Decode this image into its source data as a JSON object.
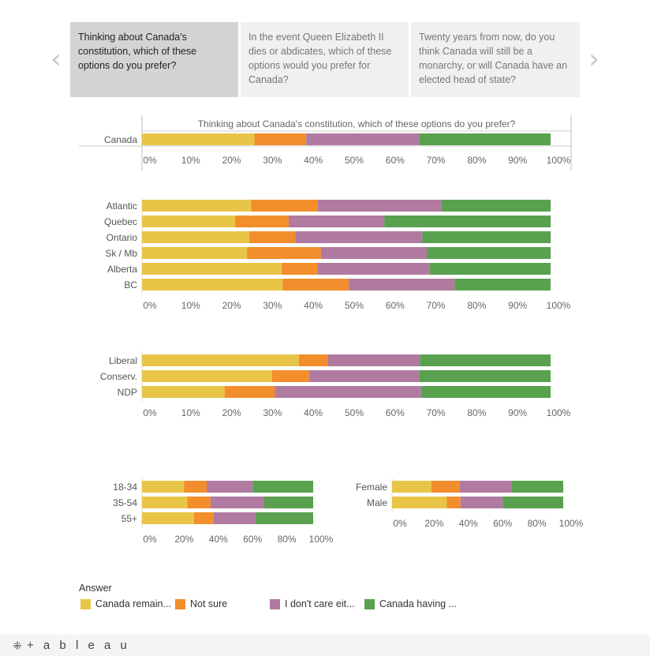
{
  "nav": {
    "prev_icon": "chevron-left-icon",
    "next_icon": "chevron-right-icon",
    "prev_glyph": "‹",
    "next_glyph": "›"
  },
  "tabs": [
    {
      "label": "Thinking about Canada's constitution, which of these options do you prefer?",
      "active": true
    },
    {
      "label": "In the event Queen Elizabeth II dies or abdicates, which of these options would you prefer for Canada?",
      "active": false
    },
    {
      "label": "Twenty years from now, do you think Canada will still be a monarchy, or will Canada have an elected head of state?",
      "active": false
    }
  ],
  "colors": {
    "remain": "#e8c547",
    "not_sure": "#f28e2b",
    "dont_care": "#b07aa1",
    "having": "#59a14f"
  },
  "legend": {
    "title": "Answer",
    "items": [
      {
        "label": "Canada remain...",
        "color": "#e8c547"
      },
      {
        "label": "Not sure",
        "color": "#f28e2b"
      },
      {
        "label": "I don't care eit...",
        "color": "#b07aa1"
      },
      {
        "label": "Canada having ...",
        "color": "#59a14f"
      }
    ]
  },
  "footer": {
    "brand": "+ a b l e a u",
    "brand_icon": "tableau-logo-icon",
    "brand_glyph": "⁜"
  },
  "chart_data": [
    {
      "type": "bar",
      "orientation": "horizontal",
      "stacked": true,
      "title": "Thinking about Canada's constitution, which of these options do you prefer?",
      "categories": [
        "Canada"
      ],
      "series": [
        {
          "color": "#e8c547",
          "values": [
            27.5
          ]
        },
        {
          "color": "#f28e2b",
          "values": [
            12.7
          ]
        },
        {
          "color": "#b07aa1",
          "values": [
            27.6
          ]
        },
        {
          "color": "#59a14f",
          "values": [
            32.2
          ]
        }
      ],
      "xlim": [
        0,
        100
      ],
      "ticks": [
        "0%",
        "10%",
        "20%",
        "30%",
        "40%",
        "50%",
        "60%",
        "70%",
        "80%",
        "90%",
        "100%"
      ]
    },
    {
      "type": "bar",
      "orientation": "horizontal",
      "stacked": true,
      "categories": [
        "Atlantic",
        "Quebec",
        "Ontario",
        "Sk / Mb",
        "Alberta",
        "BC"
      ],
      "series": [
        {
          "color": "#e8c547",
          "values": [
            26.7,
            22.8,
            26.3,
            25.7,
            34.2,
            34.4
          ]
        },
        {
          "color": "#f28e2b",
          "values": [
            16.3,
            13.1,
            11.2,
            18.1,
            8.7,
            16.2
          ]
        },
        {
          "color": "#b07aa1",
          "values": [
            30.3,
            23.4,
            31.1,
            25.9,
            27.5,
            25.9
          ]
        },
        {
          "color": "#59a14f",
          "values": [
            26.7,
            40.7,
            31.4,
            30.3,
            29.6,
            23.5
          ]
        }
      ],
      "xlim": [
        0,
        100
      ],
      "ticks": [
        "0%",
        "10%",
        "20%",
        "30%",
        "40%",
        "50%",
        "60%",
        "70%",
        "80%",
        "90%",
        "100%"
      ]
    },
    {
      "type": "bar",
      "orientation": "horizontal",
      "stacked": true,
      "categories": [
        "Liberal",
        "Conserv.",
        "NDP"
      ],
      "series": [
        {
          "color": "#e8c547",
          "values": [
            38.4,
            31.8,
            20.2
          ]
        },
        {
          "color": "#f28e2b",
          "values": [
            7.0,
            9.1,
            12.3
          ]
        },
        {
          "color": "#b07aa1",
          "values": [
            22.6,
            26.9,
            35.8
          ]
        },
        {
          "color": "#59a14f",
          "values": [
            32.0,
            32.2,
            31.7
          ]
        }
      ],
      "xlim": [
        0,
        100
      ],
      "ticks": [
        "0%",
        "10%",
        "20%",
        "30%",
        "40%",
        "50%",
        "60%",
        "70%",
        "80%",
        "90%",
        "100%"
      ]
    },
    {
      "type": "bar",
      "orientation": "horizontal",
      "stacked": true,
      "categories": [
        "18-34",
        "35-54",
        "55+"
      ],
      "series": [
        {
          "color": "#e8c547",
          "values": [
            24.5,
            26.4,
            30.4
          ]
        },
        {
          "color": "#f28e2b",
          "values": [
            13.3,
            13.6,
            11.5
          ]
        },
        {
          "color": "#b07aa1",
          "values": [
            26.9,
            31.4,
            24.4
          ]
        },
        {
          "color": "#59a14f",
          "values": [
            35.3,
            28.6,
            33.7
          ]
        }
      ],
      "xlim": [
        0,
        100
      ],
      "ticks": [
        "0%",
        "20%",
        "40%",
        "60%",
        "80%",
        "100%"
      ]
    },
    {
      "type": "bar",
      "orientation": "horizontal",
      "stacked": true,
      "categories": [
        "Female",
        "Male"
      ],
      "series": [
        {
          "color": "#e8c547",
          "values": [
            23.0,
            31.9
          ]
        },
        {
          "color": "#f28e2b",
          "values": [
            16.6,
            8.1
          ]
        },
        {
          "color": "#b07aa1",
          "values": [
            30.4,
            24.7
          ]
        },
        {
          "color": "#59a14f",
          "values": [
            30.0,
            35.3
          ]
        }
      ],
      "xlim": [
        0,
        100
      ],
      "ticks": [
        "0%",
        "20%",
        "40%",
        "60%",
        "80%",
        "100%"
      ]
    }
  ]
}
